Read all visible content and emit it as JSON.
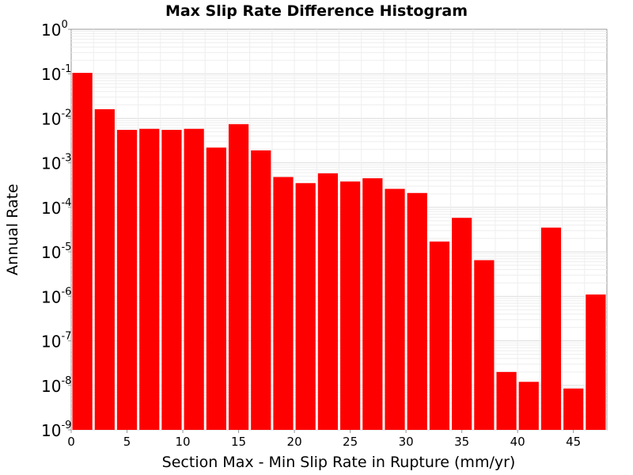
{
  "chart_data": {
    "type": "bar",
    "title": "Max Slip Rate Difference Histogram",
    "xlabel": "Section Max - Min Slip Rate in Rupture (mm/yr)",
    "ylabel": "Annual Rate",
    "y_scale": "log",
    "ylim": [
      1e-09,
      1
    ],
    "xlim": [
      0,
      48
    ],
    "bin_width": 2,
    "x_ticks": [
      "0",
      "5",
      "10",
      "15",
      "20",
      "25",
      "30",
      "35",
      "40",
      "45"
    ],
    "y_ticks": [
      {
        "base": "10",
        "exp": "0"
      },
      {
        "base": "10",
        "exp": "-1"
      },
      {
        "base": "10",
        "exp": "-2"
      },
      {
        "base": "10",
        "exp": "-3"
      },
      {
        "base": "10",
        "exp": "-4"
      },
      {
        "base": "10",
        "exp": "-5"
      },
      {
        "base": "10",
        "exp": "-6"
      },
      {
        "base": "10",
        "exp": "-7"
      },
      {
        "base": "10",
        "exp": "-8"
      },
      {
        "base": "10",
        "exp": "-9"
      }
    ],
    "grid": true,
    "bar_color": "#ff0000",
    "x": [
      1,
      3,
      5,
      7,
      9,
      11,
      13,
      15,
      17,
      19,
      21,
      23,
      25,
      27,
      29,
      31,
      33,
      35,
      37,
      39,
      41,
      43,
      45,
      47
    ],
    "values": [
      0.105,
      0.016,
      0.0055,
      0.0058,
      0.0055,
      0.0058,
      0.0022,
      0.0074,
      0.0019,
      0.00048,
      0.00035,
      0.00058,
      0.00038,
      0.00045,
      0.00026,
      0.00021,
      1.7e-05,
      5.8e-05,
      6.5e-06,
      2e-08,
      1.2e-08,
      3.5e-05,
      8.5e-09,
      1.1e-06
    ]
  }
}
